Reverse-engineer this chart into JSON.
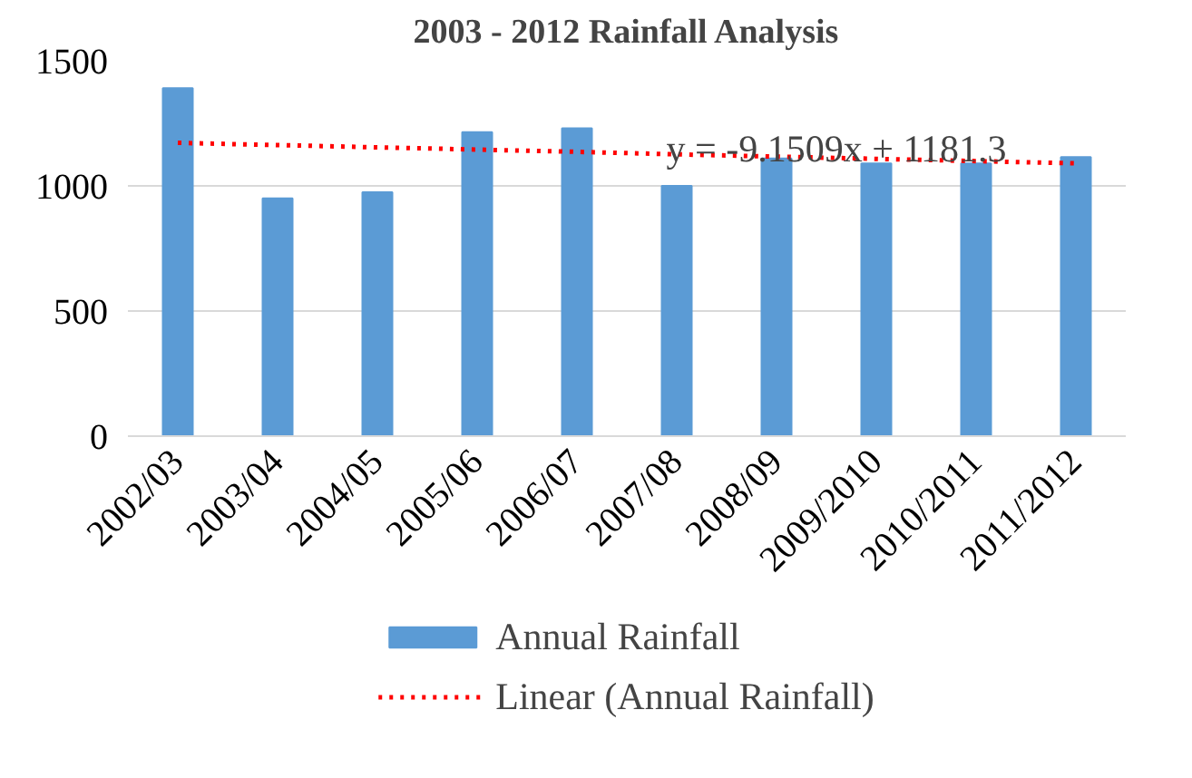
{
  "chart_data": {
    "type": "bar",
    "title": "2003 - 2012 Rainfall Analysis",
    "categories": [
      "2002/03",
      "2003/04",
      "2004/05",
      "2005/06",
      "2006/07",
      "2007/08",
      "2008/09",
      "2009/2010",
      "2010/2011",
      "2011/2012"
    ],
    "series": [
      {
        "name": "Annual Rainfall",
        "color": "#5b9bd5",
        "values": [
          1390,
          950,
          975,
          1215,
          1230,
          1000,
          1110,
          1090,
          1090,
          1115
        ]
      },
      {
        "name": "Linear (Annual Rainfall)",
        "type": "line",
        "line_style": "dotted",
        "color": "#ff0000",
        "values": [
          1172,
          1163,
          1154,
          1145,
          1136,
          1126,
          1117,
          1108,
          1099,
          1090
        ]
      }
    ],
    "ylim": [
      0,
      1500
    ],
    "yticks": [
      0,
      500,
      1000,
      1500
    ],
    "grid": "y",
    "legend": "bottom",
    "annotations": [
      "y = -9.1509x + 1181.3"
    ]
  }
}
